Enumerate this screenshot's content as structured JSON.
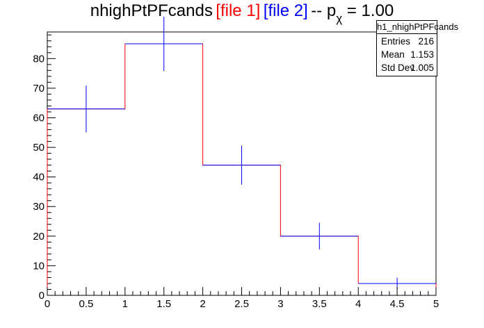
{
  "title": {
    "main": "nhighPtPFcands",
    "file1": "[file 1]",
    "file2": "[file 2]",
    "suffix_a": "-- p",
    "subscript": "χ",
    "suffix_b": " = 1.00"
  },
  "stats_box": {
    "header": "h1_nhighPtPFcands",
    "rows": [
      {
        "label": "Entries",
        "value": "216"
      },
      {
        "label": "Mean",
        "value": "1.153"
      },
      {
        "label": "Std Dev",
        "value": "1.005"
      }
    ]
  },
  "chart_data": {
    "type": "histogram",
    "title": "nhighPtPFcands [file 1] [file 2] -- pχ = 1.00",
    "xlabel": "",
    "ylabel": "",
    "xlim": [
      0,
      5
    ],
    "ylim": [
      0,
      89
    ],
    "bin_edges": [
      0,
      1,
      2,
      3,
      4,
      5
    ],
    "x_ticks": [
      "0",
      "0.5",
      "1",
      "1.5",
      "2",
      "2.5",
      "3",
      "3.5",
      "4",
      "4.5",
      "5"
    ],
    "y_ticks": [
      "0",
      "10",
      "20",
      "30",
      "40",
      "50",
      "60",
      "70",
      "80"
    ],
    "grid": false,
    "series": [
      {
        "name": "file 1",
        "style": "step",
        "color": "#ff0000",
        "values": [
          63,
          85,
          44,
          20,
          4
        ]
      },
      {
        "name": "file 2",
        "style": "errorbars",
        "color": "#0000ff",
        "values": [
          63,
          85,
          44,
          20,
          4
        ],
        "errors": [
          7.9,
          9.2,
          6.6,
          4.5,
          2.0
        ]
      }
    ]
  }
}
